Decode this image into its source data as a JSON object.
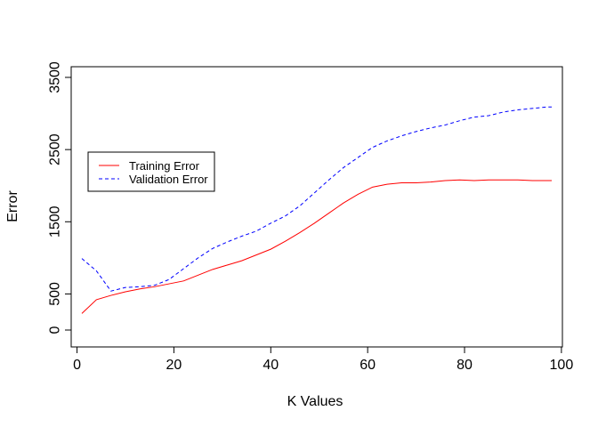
{
  "chart_data": {
    "type": "line",
    "title": "",
    "xlabel": "K Values",
    "ylabel": "Error",
    "xlim": [
      1,
      98
    ],
    "ylim": [
      0,
      3500
    ],
    "x_ticks": [
      0,
      20,
      40,
      60,
      80,
      100
    ],
    "y_ticks": [
      0,
      500,
      1500,
      2500,
      3500
    ],
    "grid": false,
    "legend_position": "left-center",
    "x": [
      1,
      4,
      7,
      10,
      13,
      16,
      19,
      22,
      25,
      28,
      31,
      34,
      37,
      40,
      43,
      46,
      49,
      52,
      55,
      58,
      61,
      64,
      67,
      70,
      73,
      76,
      79,
      82,
      85,
      88,
      91,
      94,
      97,
      98
    ],
    "series": [
      {
        "name": "Training Error",
        "color": "#ff0000",
        "line_style": "solid",
        "values": [
          230,
          420,
          480,
          530,
          570,
          600,
          640,
          680,
          760,
          840,
          900,
          960,
          1040,
          1120,
          1230,
          1350,
          1480,
          1620,
          1760,
          1880,
          1980,
          2020,
          2040,
          2040,
          2050,
          2070,
          2080,
          2070,
          2080,
          2080,
          2080,
          2070,
          2070,
          2070
        ]
      },
      {
        "name": "Validation Error",
        "color": "#0000ff",
        "line_style": "dashed",
        "values": [
          990,
          820,
          540,
          590,
          600,
          620,
          700,
          850,
          1000,
          1130,
          1220,
          1300,
          1370,
          1480,
          1580,
          1720,
          1900,
          2080,
          2250,
          2390,
          2530,
          2620,
          2690,
          2750,
          2800,
          2840,
          2900,
          2950,
          2970,
          3020,
          3050,
          3070,
          3090,
          3090
        ]
      }
    ]
  }
}
